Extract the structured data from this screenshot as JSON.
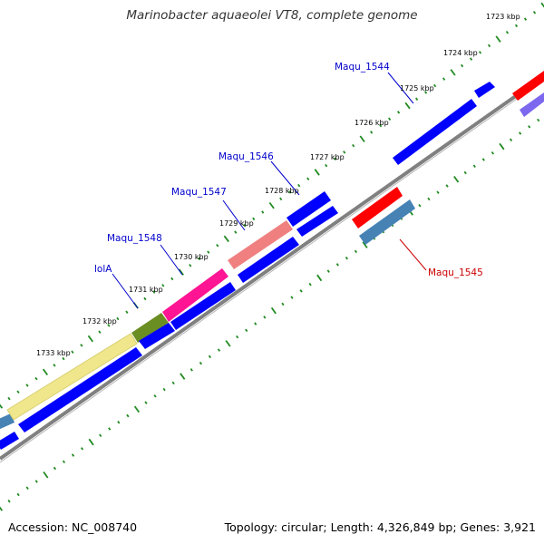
{
  "title": "Marinobacter aquaeolei VT8, complete genome",
  "footer": {
    "accession": "Accession: NC_008740",
    "summary": "Topology: circular; Length: 4,326,849 bp; Genes: 3,921"
  },
  "tick_labels": [
    "1723 kbp",
    "1724 kbp",
    "1725 kbp",
    "1726 kbp",
    "1727 kbp",
    "1728 kbp",
    "1729 kbp",
    "1730 kbp",
    "1731 kbp",
    "1732 kbp",
    "1733 kbp"
  ],
  "gene_labels": [
    {
      "text": "Maqu_1544",
      "color": "#0000cc"
    },
    {
      "text": "Maqu_1545",
      "color": "#cc0000"
    },
    {
      "text": "Maqu_1546",
      "color": "#0000cc"
    },
    {
      "text": "Maqu_1547",
      "color": "#0000cc"
    },
    {
      "text": "Maqu_1548",
      "color": "#0000cc"
    },
    {
      "text": "lolA",
      "color": "#0000cc"
    }
  ],
  "colors": {
    "backbone": "#808080",
    "ticks": "#228b22",
    "cds_forward": "#0000ff",
    "cds_reverse": "#4682b4",
    "rna": "#ff0000",
    "cog_yellow": "#f0e68c",
    "cog_olive": "#6b8e23",
    "cog_magenta": "#ff1493",
    "cog_salmon": "#f08080",
    "cog_purple": "#7b68ee"
  }
}
